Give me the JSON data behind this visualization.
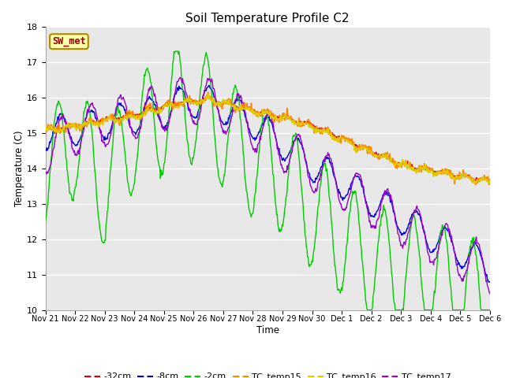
{
  "title": "Soil Temperature Profile C2",
  "xlabel": "Time",
  "ylabel": "Temperature (C)",
  "ylim": [
    10.0,
    18.0
  ],
  "yticks": [
    10.0,
    11.0,
    12.0,
    13.0,
    14.0,
    15.0,
    16.0,
    17.0,
    18.0
  ],
  "fig_bg_color": "#e8e8e8",
  "plot_bg_color": "#e8e8e8",
  "sw_met_label": "SW_met",
  "sw_met_color": "#990000",
  "sw_met_bg": "#ffffaa",
  "sw_met_border": "#aa8800",
  "series": {
    "neg32cm": {
      "label": "-32cm",
      "color": "#dd0000",
      "lw": 1.0
    },
    "neg8cm": {
      "label": "-8cm",
      "color": "#0000dd",
      "lw": 1.0
    },
    "neg2cm": {
      "label": "-2cm",
      "color": "#00cc00",
      "lw": 1.0
    },
    "tc15": {
      "label": "TC_temp15",
      "color": "#ff8800",
      "lw": 1.2
    },
    "tc16": {
      "label": "TC_temp16",
      "color": "#ddcc00",
      "lw": 1.2
    },
    "tc17": {
      "label": "TC_temp17",
      "color": "#9900cc",
      "lw": 1.0
    }
  },
  "xtick_labels": [
    "Nov 21",
    "Nov 22",
    "Nov 23",
    "Nov 24",
    "Nov 25",
    "Nov 26",
    "Nov 27",
    "Nov 28",
    "Nov 29",
    "Nov 30",
    "Dec 1",
    "Dec 2",
    "Dec 3",
    "Dec 4",
    "Dec 5",
    "Dec 6"
  ],
  "num_days": 15,
  "points_per_day": 48,
  "grid_color": "#ffffff",
  "legend_line_color_neg32": "#dd0000",
  "legend_line_color_neg8": "#0000dd",
  "legend_line_color_neg2": "#00cc00",
  "legend_line_color_tc15": "#ff8800",
  "legend_line_color_tc16": "#ddcc00",
  "legend_line_color_tc17": "#9900cc"
}
